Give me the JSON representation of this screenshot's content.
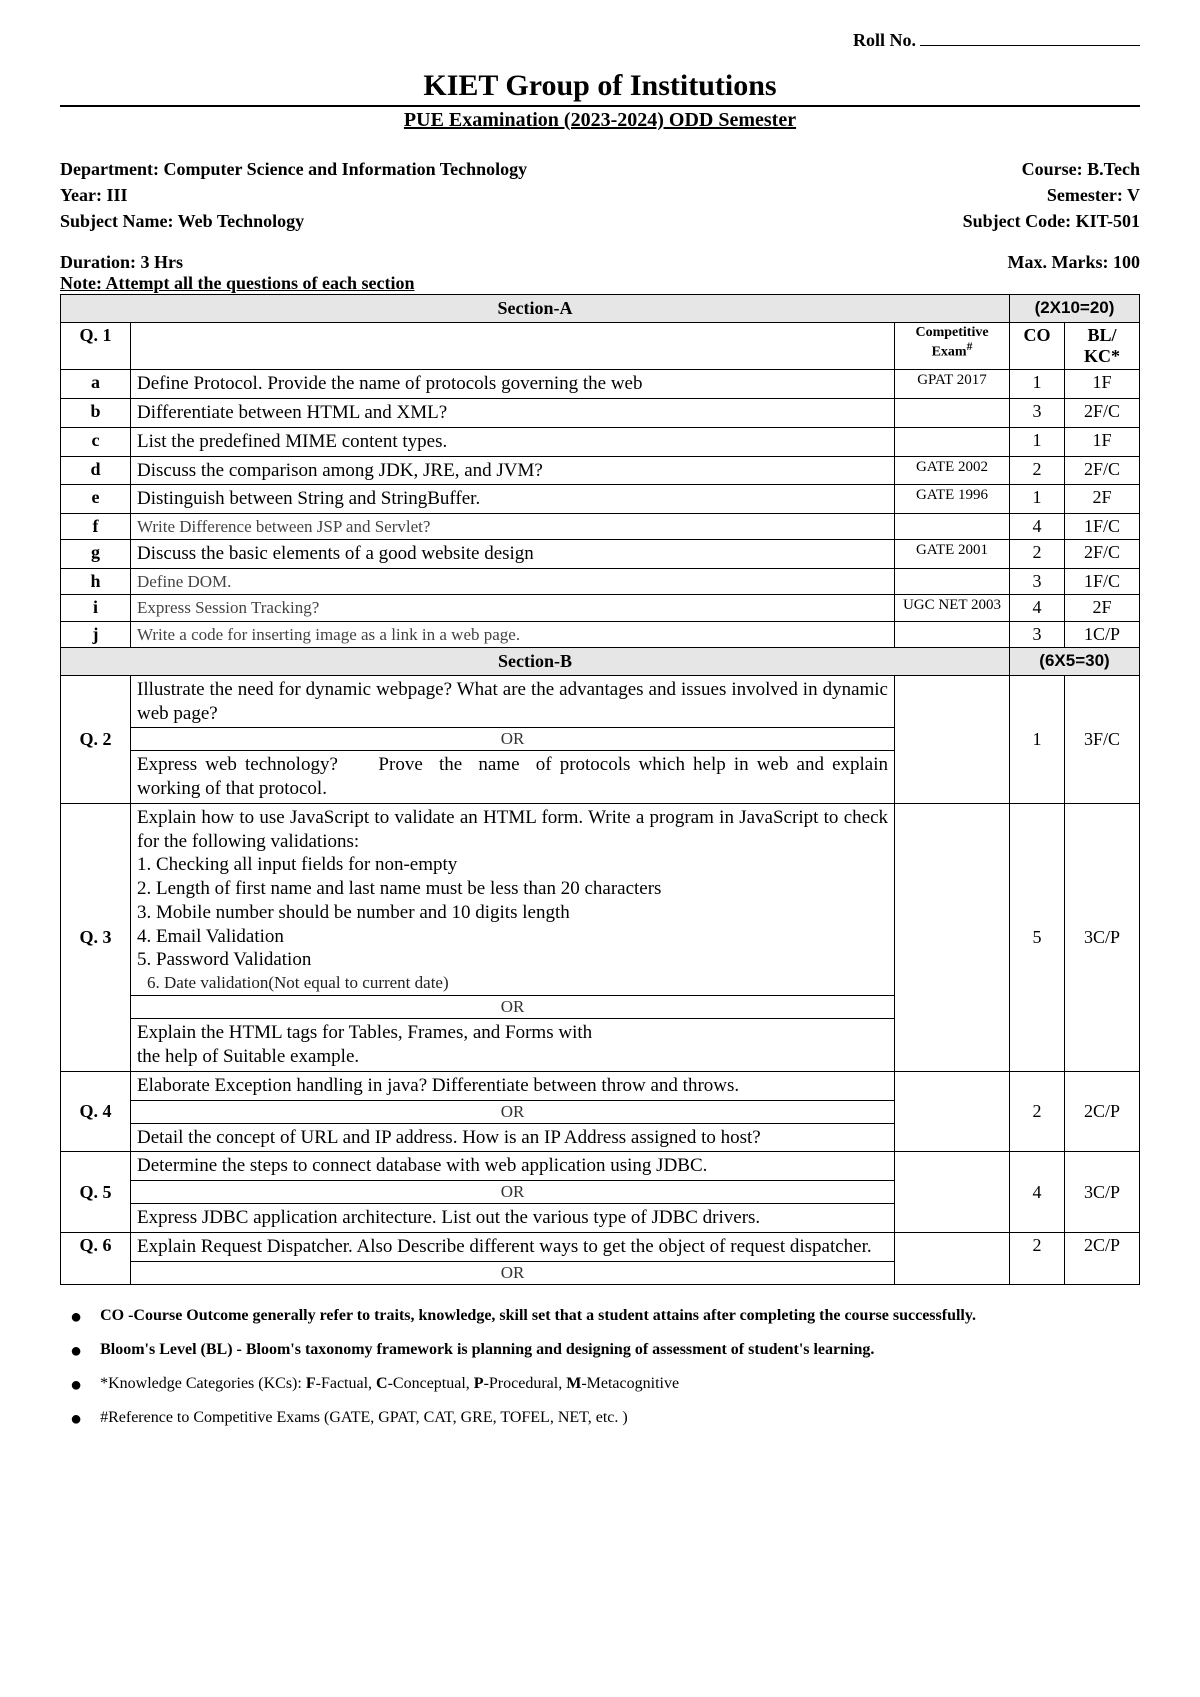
{
  "header": {
    "rollLabel": "Roll No.",
    "institution": "KIET Group of Institutions",
    "examTitle": "PUE Examination (2023-2024) ODD Semester"
  },
  "info": {
    "department": "Department: Computer Science and Information Technology",
    "course": "Course: B.Tech",
    "year": "Year: III",
    "semester": "Semester: V",
    "subjectName": "Subject Name: Web Technology",
    "subjectCode": "Subject Code: KIT-501",
    "duration": "Duration: 3 Hrs",
    "maxMarks": "Max. Marks: 100",
    "note": "Note: Attempt all the questions of each section"
  },
  "sectionA": {
    "label": "Section-A",
    "marks": "(2X10=20)",
    "qLabel": "Q. 1",
    "headExam": "Competitive Exam",
    "headExamSup": "#",
    "headCO": "CO",
    "headBL": "BL/ KC*",
    "rows": [
      {
        "id": "a",
        "text": "Define Protocol. Provide the name of protocols governing the web",
        "exam": "GPAT 2017",
        "co": "1",
        "bl": "1F"
      },
      {
        "id": "b",
        "text": "Differentiate between HTML and XML?",
        "exam": "",
        "co": "3",
        "bl": "2F/C"
      },
      {
        "id": "c",
        "text": "List the predefined MIME content types.",
        "exam": "",
        "co": "1",
        "bl": "1F"
      },
      {
        "id": "d",
        "text": "Discuss the comparison among JDK, JRE, and JVM?",
        "exam": "GATE 2002",
        "co": "2",
        "bl": "2F/C"
      },
      {
        "id": "e",
        "text": "Distinguish between String and StringBuffer.",
        "exam": "GATE 1996",
        "co": "1",
        "bl": "2F"
      },
      {
        "id": "f",
        "text": "Write Difference between JSP and Servlet?",
        "exam": "",
        "co": "4",
        "bl": "1F/C",
        "gray": true
      },
      {
        "id": "g",
        "text": "Discuss the basic elements of a good website design",
        "exam": "GATE 2001",
        "co": "2",
        "bl": "2F/C"
      },
      {
        "id": "h",
        "text": "Define DOM.",
        "exam": "",
        "co": "3",
        "bl": "1F/C",
        "gray": true
      },
      {
        "id": "i",
        "text": "Express Session Tracking?",
        "exam": "UGC NET 2003",
        "co": "4",
        "bl": "2F",
        "gray": true
      },
      {
        "id": "j",
        "text": "Write a code for inserting image as a link in a web page.",
        "exam": "",
        "co": "3",
        "bl": "1C/P",
        "gray": true
      }
    ]
  },
  "sectionB": {
    "label": "Section-B",
    "marks": "(6X5=30)"
  },
  "q2": {
    "num": "Q. 2",
    "part1": "Illustrate the need for dynamic webpage? What are the advantages and issues involved in dynamic web page?",
    "or": "OR",
    "part2": "Express web technology?     Prove  the  name  of protocols which help in web and explain working of that protocol.",
    "co": "1",
    "bl": "3F/C"
  },
  "q3": {
    "num": "Q.  3",
    "intro": "Explain  how  to  use  JavaScript  to  validate  an  HTML  form.  Write  a program in JavaScript to check for the following validations:",
    "l1": "1. Checking all input fields for non-empty",
    "l2": "2. Length of first name and last name must be less than 20 characters",
    "l3": "3. Mobile number should be number and 10 digits length",
    "l4": "4. Email Validation",
    "l5": "5. Password Validation",
    "l6": "6. Date validation(Not equal to current date)",
    "or": "OR",
    "part2a": "Explain the HTML tags for Tables, Frames, and Forms with",
    "part2b": "the help of Suitable example.",
    "co": "5",
    "bl": "3C/P"
  },
  "q4": {
    "num": "Q. 4",
    "part1": "Elaborate Exception handling in java? Differentiate between throw and throws.",
    "or": "OR",
    "part2": "Detail  the  concept  of  URL  and  IP  address.  How  is  an  IP  Address assigned to host?",
    "co": "2",
    "bl": "2C/P"
  },
  "q5": {
    "num": "Q. 5",
    "part1": "Determine  the  steps  to  connect  database  with  web  application  using JDBC.",
    "or": "OR",
    "part2": "Express  JDBC  application  architecture.  List  out  the  various  type  of JDBC drivers.",
    "co": "4",
    "bl": "3C/P"
  },
  "q6": {
    "num": "Q. 6",
    "part1": "Explain Request Dispatcher. Also Describe different ways to get the object of request dispatcher.",
    "or": "OR",
    "co": "2",
    "bl": "2C/P"
  },
  "footnotes": {
    "f1": "CO -Course Outcome generally refer to traits, knowledge, skill set that a student attains after completing the course successfully.",
    "f2": "Bloom's Level (BL) - Bloom's taxonomy framework is planning and designing of assessment of student's learning.",
    "f3pre": "*Knowledge Categories (KCs): ",
    "f3": "F-Factual, C-Conceptual, P-Procedural, M-Metacognitive",
    "f4": "#Reference to Competitive Exams (GATE, GPAT, CAT, GRE, TOFEL, NET, etc. )"
  }
}
